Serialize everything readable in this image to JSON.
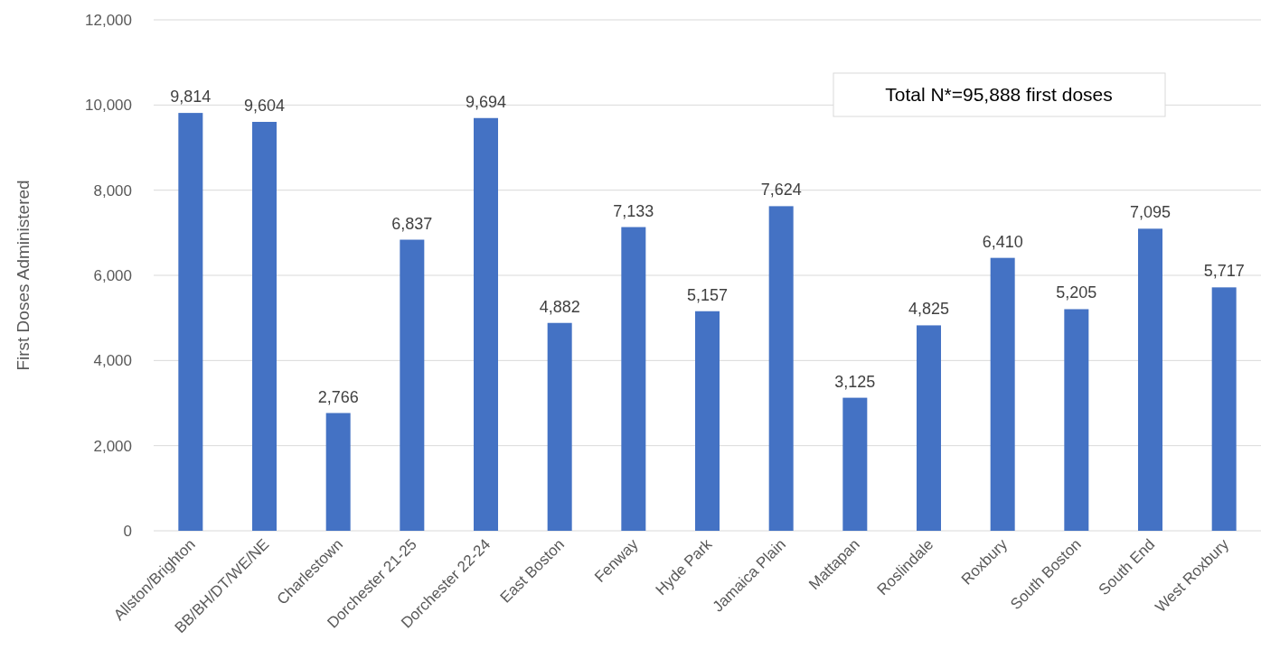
{
  "chart_data": {
    "type": "bar",
    "ylabel": "First Doses Administered",
    "categories": [
      "Allston/Brighton",
      "BB/BH/DT/WE/NE",
      "Charlestown",
      "Dorchester 21-25",
      "Dorchester 22-24",
      "East Boston",
      "Fenway",
      "Hyde Park",
      "Jamaica Plain",
      "Mattapan",
      "Roslindale",
      "Roxbury",
      "South Boston",
      "South End",
      "West Roxbury"
    ],
    "values": [
      9814,
      9604,
      2766,
      6837,
      9694,
      4882,
      7133,
      5157,
      7624,
      3125,
      4825,
      6410,
      5205,
      7095,
      5717
    ],
    "color": "#4472c4",
    "ylim": [
      0,
      12000
    ],
    "yticks": [
      {
        "value": 0,
        "label": "0"
      },
      {
        "value": 2000,
        "label": "2,000"
      },
      {
        "value": 4000,
        "label": "4,000"
      },
      {
        "value": 6000,
        "label": "6,000"
      },
      {
        "value": 8000,
        "label": "8,000"
      },
      {
        "value": 10000,
        "label": "10,000"
      },
      {
        "value": 12000,
        "label": "12,000"
      }
    ],
    "value_labels": [
      "9,814",
      "9,604",
      "2,766",
      "6,837",
      "9,694",
      "4,882",
      "7,133",
      "5,157",
      "7,624",
      "3,125",
      "4,825",
      "6,410",
      "5,205",
      "7,095",
      "5,717"
    ],
    "grid": "y",
    "annotations": [
      "Total N*=95,888 first doses"
    ]
  }
}
